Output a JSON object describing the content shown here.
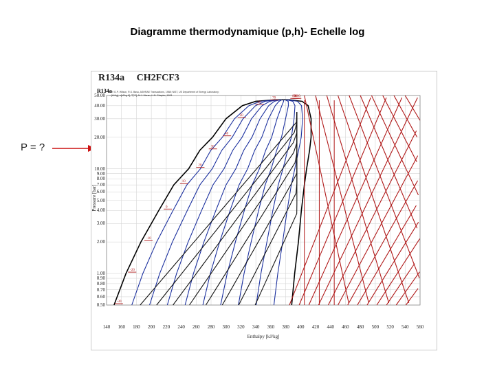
{
  "slide": {
    "title": "Diagramme thermodynamique (p,h)- Echelle log",
    "question": "P = ?"
  },
  "diagram": {
    "refrigerant": "R134a",
    "formula": "CH2FCF3",
    "sub_label": "R134a",
    "ref_text": "Ref: D.P. Wilson, R.S. Basu, ASHRAE Transactions, 1988; NIST, US Department of Energy Laboratory; ...[kJ/kg], s[kJ/kg.K], T[°C]; M.J. Moran, H.N. Shapiro, 1993",
    "colors": {
      "saturation": "#000000",
      "isotherm": "#1a2f9e",
      "superheat": "#b01818",
      "grid": "#d6d6d6"
    },
    "x_axis": {
      "label": "Enthalpy [kJ/kg]",
      "ticks": [
        "140",
        "160",
        "180",
        "200",
        "220",
        "240",
        "260",
        "280",
        "300",
        "320",
        "340",
        "360",
        "380",
        "400",
        "420",
        "440",
        "460",
        "480",
        "500",
        "520",
        "540",
        "560"
      ]
    },
    "y_axis": {
      "label": "Pressure [bar]",
      "ticks": [
        "50.00",
        "40.00",
        "30.00",
        "20.00",
        "10.00",
        "9.00",
        "8.00",
        "7.00",
        "6.00",
        "5.00",
        "4.00",
        "3.00",
        "2.00",
        "1.00",
        "0.90",
        "0.80",
        "0.70",
        "0.60",
        "0.50"
      ]
    },
    "temperature_labels": [
      "-30",
      "-20",
      "-10",
      "0",
      "10",
      "20",
      "30",
      "40",
      "50",
      "60",
      "70",
      "80",
      "90",
      "100"
    ]
  }
}
